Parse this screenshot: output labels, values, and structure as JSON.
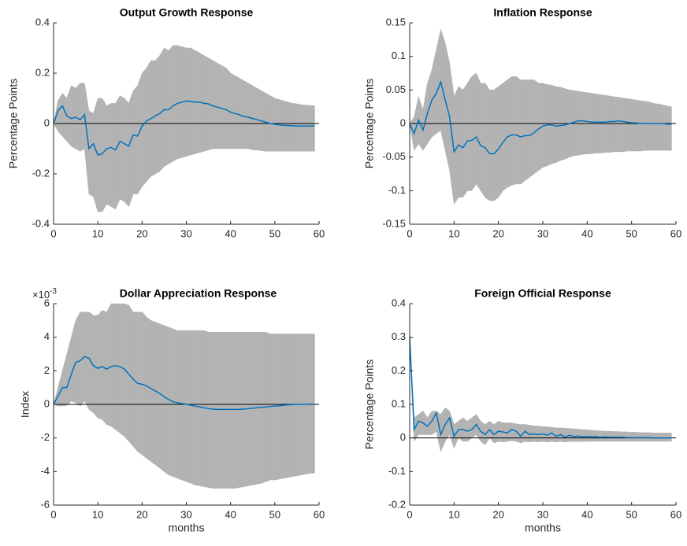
{
  "chart_data": [
    {
      "type": "line",
      "title": "Output Growth Response",
      "ylabel": "Percentage Points",
      "color": "#0072bd",
      "band_color": "#b3b3b3",
      "xlim": [
        0,
        60
      ],
      "xticks": [
        0,
        10,
        20,
        30,
        40,
        50,
        60
      ],
      "ylim": [
        -0.4,
        0.4
      ],
      "yticks": [
        -0.4,
        -0.2,
        0,
        0.2,
        0.4
      ],
      "x": [
        0,
        1,
        2,
        3,
        4,
        5,
        6,
        7,
        8,
        9,
        10,
        11,
        12,
        13,
        14,
        15,
        16,
        17,
        18,
        19,
        20,
        21,
        22,
        23,
        24,
        25,
        26,
        27,
        28,
        29,
        30,
        31,
        32,
        33,
        34,
        35,
        36,
        37,
        38,
        39,
        40,
        41,
        42,
        43,
        44,
        45,
        46,
        47,
        48,
        49,
        50,
        51,
        52,
        53,
        54,
        55,
        56,
        57,
        58,
        59
      ],
      "values": [
        0,
        0.05,
        0.07,
        0.03,
        0.02,
        0.025,
        0.015,
        0.035,
        -0.1,
        -0.08,
        -0.125,
        -0.12,
        -0.1,
        -0.095,
        -0.105,
        -0.07,
        -0.08,
        -0.09,
        -0.045,
        -0.05,
        -0.01,
        0.01,
        0.02,
        0.03,
        0.04,
        0.055,
        0.055,
        0.07,
        0.08,
        0.085,
        0.09,
        0.088,
        0.085,
        0.085,
        0.08,
        0.078,
        0.07,
        0.065,
        0.06,
        0.055,
        0.045,
        0.04,
        0.035,
        0.028,
        0.025,
        0.02,
        0.015,
        0.01,
        0.005,
        0,
        -0.003,
        -0.005,
        -0.007,
        -0.008,
        -0.009,
        -0.01,
        -0.01,
        -0.01,
        -0.01,
        -0.009
      ],
      "upper": [
        0,
        0.09,
        0.12,
        0.1,
        0.15,
        0.14,
        0.16,
        0.16,
        0.05,
        0.04,
        0.1,
        0.1,
        0.07,
        0.08,
        0.08,
        0.11,
        0.1,
        0.08,
        0.13,
        0.15,
        0.2,
        0.22,
        0.25,
        0.25,
        0.27,
        0.3,
        0.29,
        0.31,
        0.31,
        0.305,
        0.3,
        0.3,
        0.29,
        0.28,
        0.27,
        0.26,
        0.25,
        0.24,
        0.23,
        0.22,
        0.2,
        0.19,
        0.18,
        0.17,
        0.16,
        0.15,
        0.14,
        0.13,
        0.12,
        0.11,
        0.1,
        0.095,
        0.09,
        0.085,
        0.08,
        0.078,
        0.075,
        0.073,
        0.072,
        0.07
      ],
      "lower": [
        0,
        -0.03,
        -0.05,
        -0.07,
        -0.09,
        -0.1,
        -0.11,
        -0.1,
        -0.28,
        -0.29,
        -0.35,
        -0.35,
        -0.32,
        -0.33,
        -0.34,
        -0.3,
        -0.31,
        -0.33,
        -0.28,
        -0.28,
        -0.25,
        -0.23,
        -0.21,
        -0.2,
        -0.19,
        -0.17,
        -0.16,
        -0.15,
        -0.14,
        -0.135,
        -0.13,
        -0.125,
        -0.12,
        -0.115,
        -0.11,
        -0.105,
        -0.1,
        -0.1,
        -0.1,
        -0.1,
        -0.1,
        -0.1,
        -0.1,
        -0.1,
        -0.1,
        -0.105,
        -0.105,
        -0.108,
        -0.11,
        -0.11,
        -0.11,
        -0.11,
        -0.11,
        -0.11,
        -0.11,
        -0.11,
        -0.11,
        -0.11,
        -0.11,
        -0.11
      ]
    },
    {
      "type": "line",
      "title": "Inflation Response",
      "ylabel": "Percentage Points",
      "color": "#0072bd",
      "band_color": "#b3b3b3",
      "xlim": [
        0,
        60
      ],
      "xticks": [
        0,
        10,
        20,
        30,
        40,
        50,
        60
      ],
      "ylim": [
        -0.15,
        0.15
      ],
      "yticks": [
        -0.15,
        -0.1,
        -0.05,
        0,
        0.05,
        0.1,
        0.15
      ],
      "x": [
        0,
        1,
        2,
        3,
        4,
        5,
        6,
        7,
        8,
        9,
        10,
        11,
        12,
        13,
        14,
        15,
        16,
        17,
        18,
        19,
        20,
        21,
        22,
        23,
        24,
        25,
        26,
        27,
        28,
        29,
        30,
        31,
        32,
        33,
        34,
        35,
        36,
        37,
        38,
        39,
        40,
        41,
        42,
        43,
        44,
        45,
        46,
        47,
        48,
        49,
        50,
        51,
        52,
        53,
        54,
        55,
        56,
        57,
        58,
        59
      ],
      "values": [
        0,
        -0.015,
        0.005,
        -0.01,
        0.015,
        0.035,
        0.045,
        0.062,
        0.035,
        0.01,
        -0.042,
        -0.032,
        -0.036,
        -0.026,
        -0.025,
        -0.02,
        -0.033,
        -0.036,
        -0.045,
        -0.045,
        -0.038,
        -0.028,
        -0.02,
        -0.017,
        -0.017,
        -0.02,
        -0.018,
        -0.018,
        -0.014,
        -0.008,
        -0.004,
        -0.002,
        -0.002,
        -0.004,
        -0.003,
        -0.002,
        0,
        0.002,
        0.004,
        0.004,
        0.003,
        0.002,
        0.002,
        0.002,
        0.002,
        0.003,
        0.003,
        0.004,
        0.003,
        0.002,
        0.001,
        0.001,
        0,
        0,
        0,
        0,
        0,
        0,
        -0.001,
        -0.001
      ],
      "upper": [
        0,
        0.01,
        0.04,
        0.02,
        0.06,
        0.08,
        0.11,
        0.14,
        0.12,
        0.09,
        0.04,
        0.055,
        0.05,
        0.06,
        0.07,
        0.075,
        0.06,
        0.06,
        0.05,
        0.05,
        0.055,
        0.06,
        0.065,
        0.07,
        0.07,
        0.065,
        0.065,
        0.065,
        0.065,
        0.06,
        0.06,
        0.058,
        0.057,
        0.055,
        0.054,
        0.052,
        0.05,
        0.049,
        0.048,
        0.047,
        0.046,
        0.045,
        0.044,
        0.043,
        0.042,
        0.041,
        0.04,
        0.039,
        0.038,
        0.037,
        0.036,
        0.035,
        0.034,
        0.033,
        0.032,
        0.03,
        0.029,
        0.028,
        0.026,
        0.025
      ],
      "lower": [
        0,
        -0.04,
        -0.03,
        -0.04,
        -0.03,
        -0.02,
        -0.015,
        -0.01,
        -0.04,
        -0.07,
        -0.12,
        -0.11,
        -0.11,
        -0.1,
        -0.1,
        -0.09,
        -0.1,
        -0.11,
        -0.115,
        -0.115,
        -0.11,
        -0.1,
        -0.095,
        -0.092,
        -0.09,
        -0.09,
        -0.085,
        -0.08,
        -0.075,
        -0.07,
        -0.065,
        -0.063,
        -0.06,
        -0.058,
        -0.055,
        -0.053,
        -0.05,
        -0.048,
        -0.047,
        -0.046,
        -0.045,
        -0.045,
        -0.044,
        -0.044,
        -0.043,
        -0.043,
        -0.042,
        -0.042,
        -0.042,
        -0.041,
        -0.041,
        -0.041,
        -0.041,
        -0.04,
        -0.04,
        -0.04,
        -0.04,
        -0.04,
        -0.04,
        -0.04
      ]
    },
    {
      "type": "line",
      "title": "Dollar Appreciation Response",
      "ylabel": "Index",
      "y_multiplier": {
        "base": "×10",
        "exponent": "-3"
      },
      "color": "#0072bd",
      "band_color": "#b3b3b3",
      "xlabel": "months",
      "xlim": [
        0,
        60
      ],
      "xticks": [
        0,
        10,
        20,
        30,
        40,
        50,
        60
      ],
      "ylim": [
        -6,
        6
      ],
      "yticks": [
        -6,
        -4,
        -2,
        0,
        2,
        4,
        6
      ],
      "x": [
        0,
        1,
        2,
        3,
        4,
        5,
        6,
        7,
        8,
        9,
        10,
        11,
        12,
        13,
        14,
        15,
        16,
        17,
        18,
        19,
        20,
        21,
        22,
        23,
        24,
        25,
        26,
        27,
        28,
        29,
        30,
        31,
        32,
        33,
        34,
        35,
        36,
        37,
        38,
        39,
        40,
        41,
        42,
        43,
        44,
        45,
        46,
        47,
        48,
        49,
        50,
        51,
        52,
        53,
        54,
        55,
        56,
        57,
        58,
        59
      ],
      "values": [
        0,
        0.5,
        1,
        1,
        1.8,
        2.5,
        2.6,
        2.85,
        2.75,
        2.3,
        2.15,
        2.25,
        2.1,
        2.25,
        2.3,
        2.25,
        2.1,
        1.8,
        1.5,
        1.25,
        1.2,
        1.1,
        0.95,
        0.8,
        0.65,
        0.45,
        0.3,
        0.15,
        0.1,
        0.05,
        0,
        -0.05,
        -0.1,
        -0.15,
        -0.2,
        -0.25,
        -0.28,
        -0.3,
        -0.3,
        -0.3,
        -0.3,
        -0.3,
        -0.3,
        -0.28,
        -0.25,
        -0.22,
        -0.2,
        -0.18,
        -0.15,
        -0.12,
        -0.1,
        -0.08,
        -0.05,
        -0.03,
        -0.02,
        0,
        0,
        0,
        0.02,
        0.02
      ],
      "upper": [
        0,
        1,
        2,
        3,
        4,
        5,
        5.5,
        5.5,
        5.5,
        5.3,
        5.3,
        5.6,
        5.5,
        6,
        6,
        6,
        6,
        5.9,
        5.5,
        5.5,
        5.5,
        5.2,
        5,
        4.9,
        4.8,
        4.7,
        4.6,
        4.5,
        4.4,
        4.4,
        4.4,
        4.4,
        4.4,
        4.4,
        4.4,
        4.3,
        4.3,
        4.3,
        4.3,
        4.3,
        4.3,
        4.3,
        4.3,
        4.3,
        4.3,
        4.3,
        4.3,
        4.3,
        4.3,
        4.2,
        4.2,
        4.2,
        4.2,
        4.2,
        4.2,
        4.2,
        4.2,
        4.2,
        4.2,
        4.2
      ],
      "lower": [
        0,
        -0.1,
        -0.1,
        -0.05,
        0.2,
        0.1,
        -0.1,
        0.2,
        -0.3,
        -0.5,
        -0.8,
        -0.9,
        -1.2,
        -1.3,
        -1.5,
        -1.7,
        -1.9,
        -2.2,
        -2.5,
        -2.8,
        -3,
        -3.2,
        -3.4,
        -3.6,
        -3.8,
        -4,
        -4.2,
        -4.3,
        -4.4,
        -4.5,
        -4.6,
        -4.7,
        -4.8,
        -4.85,
        -4.9,
        -4.95,
        -5,
        -5,
        -5,
        -5,
        -5,
        -5,
        -4.95,
        -4.9,
        -4.85,
        -4.8,
        -4.75,
        -4.7,
        -4.6,
        -4.5,
        -4.5,
        -4.45,
        -4.4,
        -4.35,
        -4.3,
        -4.25,
        -4.2,
        -4.15,
        -4.1,
        -4.1
      ]
    },
    {
      "type": "line",
      "title": "Foreign Official Response",
      "ylabel": "Percentage Points",
      "color": "#0072bd",
      "band_color": "#b3b3b3",
      "xlabel": "months",
      "xlim": [
        0,
        60
      ],
      "xticks": [
        0,
        10,
        20,
        30,
        40,
        50,
        60
      ],
      "ylim": [
        -0.2,
        0.4
      ],
      "yticks": [
        -0.2,
        -0.1,
        0,
        0.1,
        0.2,
        0.3,
        0.4
      ],
      "x": [
        0,
        1,
        2,
        3,
        4,
        5,
        6,
        7,
        8,
        9,
        10,
        11,
        12,
        13,
        14,
        15,
        16,
        17,
        18,
        19,
        20,
        21,
        22,
        23,
        24,
        25,
        26,
        27,
        28,
        29,
        30,
        31,
        32,
        33,
        34,
        35,
        36,
        37,
        38,
        39,
        40,
        41,
        42,
        43,
        44,
        45,
        46,
        47,
        48,
        49,
        50,
        51,
        52,
        53,
        54,
        55,
        56,
        57,
        58,
        59
      ],
      "values": [
        0.3,
        0.025,
        0.05,
        0.045,
        0.035,
        0.05,
        0.075,
        0.01,
        0.04,
        0.06,
        0.005,
        0.025,
        0.025,
        0.02,
        0.025,
        0.04,
        0.02,
        0.01,
        0.025,
        0.01,
        0.02,
        0.018,
        0.015,
        0.025,
        0.02,
        0.005,
        0.02,
        0.01,
        0.012,
        0.01,
        0.012,
        0.008,
        0.015,
        0.005,
        0.01,
        0.003,
        0.008,
        0.004,
        0.006,
        0.003,
        0.005,
        0.003,
        0.004,
        0.002,
        0.003,
        0.002,
        0.002,
        0.002,
        0.002,
        0.001,
        0.001,
        0.001,
        0.001,
        0.001,
        0.001,
        0,
        0,
        0,
        0,
        0
      ],
      "upper": [
        0.3,
        0.06,
        0.07,
        0.08,
        0.06,
        0.08,
        0.08,
        0.07,
        0.09,
        0.08,
        0.04,
        0.05,
        0.06,
        0.05,
        0.06,
        0.07,
        0.05,
        0.04,
        0.05,
        0.04,
        0.05,
        0.045,
        0.045,
        0.045,
        0.042,
        0.04,
        0.04,
        0.038,
        0.036,
        0.035,
        0.034,
        0.033,
        0.032,
        0.03,
        0.03,
        0.029,
        0.028,
        0.027,
        0.026,
        0.025,
        0.024,
        0.023,
        0.022,
        0.021,
        0.02,
        0.02,
        0.019,
        0.019,
        0.018,
        0.018,
        0.017,
        0.017,
        0.016,
        0.016,
        0.016,
        0.015,
        0.015,
        0.015,
        0.015,
        0.015
      ],
      "lower": [
        0.3,
        -0.01,
        0.01,
        0.01,
        0.01,
        0.01,
        0.02,
        -0.04,
        -0.01,
        0.01,
        -0.03,
        0,
        -0.01,
        -0.01,
        0,
        0.01,
        -0.01,
        -0.02,
        0,
        -0.015,
        -0.01,
        -0.012,
        -0.01,
        -0.008,
        -0.01,
        -0.015,
        -0.01,
        -0.012,
        -0.01,
        -0.012,
        -0.01,
        -0.012,
        -0.01,
        -0.012,
        -0.01,
        -0.012,
        -0.01,
        -0.011,
        -0.01,
        -0.011,
        -0.01,
        -0.01,
        -0.01,
        -0.01,
        -0.01,
        -0.01,
        -0.01,
        -0.01,
        -0.01,
        -0.01,
        -0.01,
        -0.01,
        -0.01,
        -0.01,
        -0.01,
        -0.01,
        -0.01,
        -0.01,
        -0.01,
        -0.01
      ]
    }
  ]
}
